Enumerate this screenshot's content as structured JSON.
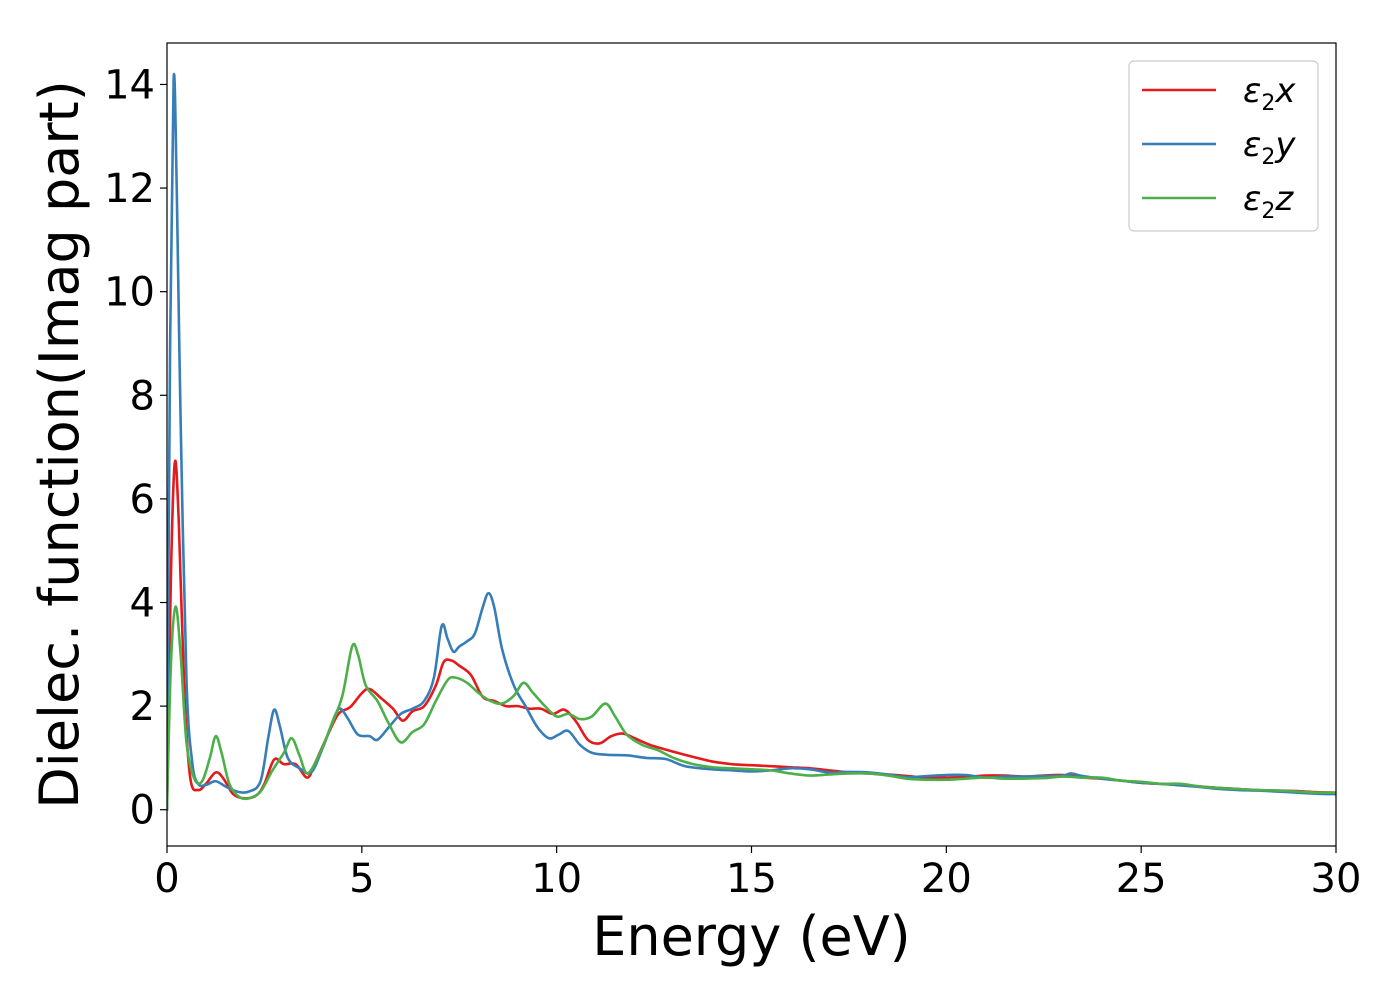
{
  "chart_data": {
    "type": "line",
    "title": "",
    "xlabel": "Energy (eV)",
    "ylabel": "Dielec. function(Imag part)",
    "xlim": [
      0,
      30
    ],
    "ylim": [
      -0.7,
      14.8
    ],
    "xticks": [
      0,
      5,
      10,
      15,
      20,
      25,
      30
    ],
    "yticks": [
      0,
      2,
      4,
      6,
      8,
      10,
      12,
      14
    ],
    "grid": false,
    "legend_position": "top-right",
    "series": [
      {
        "name": "ε2x",
        "legend": {
          "symbol": "ε",
          "sub": "2",
          "comp": "x"
        },
        "color": "#e41a1c",
        "points": [
          [
            0,
            0
          ],
          [
            0.1,
            4.5
          ],
          [
            0.2,
            6.7
          ],
          [
            0.3,
            5.6
          ],
          [
            0.45,
            2.2
          ],
          [
            0.6,
            0.6
          ],
          [
            0.8,
            0.38
          ],
          [
            1.0,
            0.5
          ],
          [
            1.25,
            0.72
          ],
          [
            1.45,
            0.6
          ],
          [
            1.7,
            0.3
          ],
          [
            2.0,
            0.22
          ],
          [
            2.3,
            0.28
          ],
          [
            2.5,
            0.5
          ],
          [
            2.75,
            0.97
          ],
          [
            3.0,
            0.88
          ],
          [
            3.3,
            0.88
          ],
          [
            3.6,
            0.62
          ],
          [
            3.8,
            0.9
          ],
          [
            4.1,
            1.4
          ],
          [
            4.4,
            1.85
          ],
          [
            4.7,
            1.98
          ],
          [
            5.0,
            2.25
          ],
          [
            5.2,
            2.33
          ],
          [
            5.5,
            2.15
          ],
          [
            5.8,
            1.95
          ],
          [
            6.05,
            1.72
          ],
          [
            6.3,
            1.9
          ],
          [
            6.6,
            2.0
          ],
          [
            6.9,
            2.4
          ],
          [
            7.1,
            2.85
          ],
          [
            7.3,
            2.88
          ],
          [
            7.5,
            2.78
          ],
          [
            7.8,
            2.6
          ],
          [
            8.1,
            2.18
          ],
          [
            8.4,
            2.1
          ],
          [
            8.7,
            2.0
          ],
          [
            9.0,
            2.0
          ],
          [
            9.3,
            1.95
          ],
          [
            9.6,
            1.95
          ],
          [
            9.9,
            1.85
          ],
          [
            10.2,
            1.93
          ],
          [
            10.5,
            1.7
          ],
          [
            10.8,
            1.35
          ],
          [
            11.1,
            1.28
          ],
          [
            11.4,
            1.42
          ],
          [
            11.7,
            1.47
          ],
          [
            12.0,
            1.38
          ],
          [
            12.4,
            1.25
          ],
          [
            13.0,
            1.12
          ],
          [
            13.5,
            1.02
          ],
          [
            14.0,
            0.93
          ],
          [
            14.5,
            0.88
          ],
          [
            15.0,
            0.86
          ],
          [
            15.5,
            0.84
          ],
          [
            16.0,
            0.82
          ],
          [
            16.5,
            0.8
          ],
          [
            17.0,
            0.76
          ],
          [
            17.5,
            0.72
          ],
          [
            18.0,
            0.7
          ],
          [
            18.5,
            0.68
          ],
          [
            19.0,
            0.65
          ],
          [
            19.5,
            0.62
          ],
          [
            20.0,
            0.62
          ],
          [
            20.5,
            0.63
          ],
          [
            21.0,
            0.66
          ],
          [
            21.5,
            0.66
          ],
          [
            22.0,
            0.64
          ],
          [
            22.5,
            0.66
          ],
          [
            23.0,
            0.67
          ],
          [
            23.5,
            0.62
          ],
          [
            24.0,
            0.6
          ],
          [
            24.5,
            0.56
          ],
          [
            25.0,
            0.52
          ],
          [
            25.5,
            0.5
          ],
          [
            26.0,
            0.48
          ],
          [
            26.5,
            0.45
          ],
          [
            27.0,
            0.42
          ],
          [
            27.5,
            0.4
          ],
          [
            28.0,
            0.38
          ],
          [
            28.5,
            0.37
          ],
          [
            29.0,
            0.36
          ],
          [
            29.5,
            0.34
          ],
          [
            30.0,
            0.33
          ]
        ]
      },
      {
        "name": "ε2y",
        "legend": {
          "symbol": "ε",
          "sub": "2",
          "comp": "y"
        },
        "color": "#377eb8",
        "points": [
          [
            0,
            0
          ],
          [
            0.08,
            9.0
          ],
          [
            0.17,
            14.1
          ],
          [
            0.25,
            12.0
          ],
          [
            0.35,
            7.5
          ],
          [
            0.5,
            2.5
          ],
          [
            0.65,
            0.9
          ],
          [
            0.8,
            0.5
          ],
          [
            1.0,
            0.48
          ],
          [
            1.25,
            0.55
          ],
          [
            1.5,
            0.45
          ],
          [
            1.8,
            0.35
          ],
          [
            2.1,
            0.35
          ],
          [
            2.4,
            0.55
          ],
          [
            2.6,
            1.4
          ],
          [
            2.75,
            1.93
          ],
          [
            2.9,
            1.6
          ],
          [
            3.1,
            1.0
          ],
          [
            3.4,
            0.8
          ],
          [
            3.7,
            0.72
          ],
          [
            4.0,
            1.2
          ],
          [
            4.3,
            1.8
          ],
          [
            4.45,
            1.95
          ],
          [
            4.65,
            1.75
          ],
          [
            4.9,
            1.45
          ],
          [
            5.2,
            1.42
          ],
          [
            5.4,
            1.35
          ],
          [
            5.7,
            1.6
          ],
          [
            6.0,
            1.85
          ],
          [
            6.3,
            1.95
          ],
          [
            6.6,
            2.1
          ],
          [
            6.85,
            2.55
          ],
          [
            7.05,
            3.55
          ],
          [
            7.2,
            3.3
          ],
          [
            7.35,
            3.05
          ],
          [
            7.5,
            3.15
          ],
          [
            7.7,
            3.25
          ],
          [
            7.9,
            3.4
          ],
          [
            8.1,
            3.9
          ],
          [
            8.25,
            4.18
          ],
          [
            8.4,
            3.9
          ],
          [
            8.6,
            3.1
          ],
          [
            8.9,
            2.4
          ],
          [
            9.2,
            2.0
          ],
          [
            9.5,
            1.6
          ],
          [
            9.8,
            1.38
          ],
          [
            10.05,
            1.45
          ],
          [
            10.3,
            1.52
          ],
          [
            10.6,
            1.25
          ],
          [
            10.9,
            1.1
          ],
          [
            11.3,
            1.06
          ],
          [
            11.8,
            1.05
          ],
          [
            12.3,
            1.0
          ],
          [
            12.8,
            0.98
          ],
          [
            13.3,
            0.84
          ],
          [
            14.0,
            0.78
          ],
          [
            14.5,
            0.76
          ],
          [
            15.0,
            0.74
          ],
          [
            15.5,
            0.76
          ],
          [
            16.0,
            0.8
          ],
          [
            16.5,
            0.78
          ],
          [
            17.0,
            0.72
          ],
          [
            17.5,
            0.73
          ],
          [
            18.0,
            0.72
          ],
          [
            18.5,
            0.68
          ],
          [
            19.0,
            0.63
          ],
          [
            19.5,
            0.65
          ],
          [
            20.0,
            0.67
          ],
          [
            20.5,
            0.67
          ],
          [
            21.0,
            0.62
          ],
          [
            21.5,
            0.64
          ],
          [
            22.0,
            0.64
          ],
          [
            22.5,
            0.65
          ],
          [
            23.0,
            0.66
          ],
          [
            23.2,
            0.7
          ],
          [
            23.5,
            0.65
          ],
          [
            24.0,
            0.6
          ],
          [
            24.5,
            0.56
          ],
          [
            25.0,
            0.52
          ],
          [
            25.5,
            0.5
          ],
          [
            26.0,
            0.47
          ],
          [
            26.5,
            0.44
          ],
          [
            27.0,
            0.4
          ],
          [
            27.5,
            0.38
          ],
          [
            28.0,
            0.37
          ],
          [
            28.5,
            0.35
          ],
          [
            29.0,
            0.33
          ],
          [
            29.5,
            0.31
          ],
          [
            30.0,
            0.3
          ]
        ]
      },
      {
        "name": "ε2z",
        "legend": {
          "symbol": "ε",
          "sub": "2",
          "comp": "z"
        },
        "color": "#4daf4a",
        "points": [
          [
            0,
            0
          ],
          [
            0.1,
            2.8
          ],
          [
            0.22,
            3.92
          ],
          [
            0.35,
            3.0
          ],
          [
            0.5,
            1.3
          ],
          [
            0.7,
            0.6
          ],
          [
            0.9,
            0.55
          ],
          [
            1.1,
            1.0
          ],
          [
            1.25,
            1.42
          ],
          [
            1.4,
            1.1
          ],
          [
            1.6,
            0.5
          ],
          [
            1.85,
            0.25
          ],
          [
            2.1,
            0.22
          ],
          [
            2.4,
            0.35
          ],
          [
            2.7,
            0.75
          ],
          [
            3.0,
            1.1
          ],
          [
            3.2,
            1.38
          ],
          [
            3.4,
            1.05
          ],
          [
            3.6,
            0.7
          ],
          [
            3.9,
            1.05
          ],
          [
            4.2,
            1.6
          ],
          [
            4.5,
            2.2
          ],
          [
            4.75,
            3.15
          ],
          [
            4.9,
            3.0
          ],
          [
            5.1,
            2.4
          ],
          [
            5.4,
            2.1
          ],
          [
            5.7,
            1.65
          ],
          [
            6.0,
            1.3
          ],
          [
            6.3,
            1.5
          ],
          [
            6.6,
            1.65
          ],
          [
            6.9,
            2.1
          ],
          [
            7.2,
            2.5
          ],
          [
            7.4,
            2.55
          ],
          [
            7.7,
            2.45
          ],
          [
            8.0,
            2.25
          ],
          [
            8.3,
            2.1
          ],
          [
            8.6,
            2.05
          ],
          [
            8.9,
            2.2
          ],
          [
            9.15,
            2.45
          ],
          [
            9.4,
            2.25
          ],
          [
            9.7,
            2.0
          ],
          [
            10.0,
            1.8
          ],
          [
            10.3,
            1.85
          ],
          [
            10.6,
            1.75
          ],
          [
            10.9,
            1.8
          ],
          [
            11.25,
            2.05
          ],
          [
            11.5,
            1.8
          ],
          [
            11.8,
            1.45
          ],
          [
            12.2,
            1.25
          ],
          [
            12.6,
            1.15
          ],
          [
            13.0,
            1.0
          ],
          [
            13.5,
            0.88
          ],
          [
            14.0,
            0.82
          ],
          [
            14.5,
            0.8
          ],
          [
            15.0,
            0.78
          ],
          [
            15.5,
            0.76
          ],
          [
            16.0,
            0.7
          ],
          [
            16.5,
            0.66
          ],
          [
            17.0,
            0.68
          ],
          [
            17.5,
            0.7
          ],
          [
            18.0,
            0.7
          ],
          [
            18.5,
            0.66
          ],
          [
            19.0,
            0.6
          ],
          [
            19.5,
            0.58
          ],
          [
            20.0,
            0.58
          ],
          [
            20.5,
            0.6
          ],
          [
            21.0,
            0.62
          ],
          [
            21.5,
            0.6
          ],
          [
            22.0,
            0.6
          ],
          [
            22.5,
            0.61
          ],
          [
            23.0,
            0.64
          ],
          [
            23.5,
            0.62
          ],
          [
            24.0,
            0.62
          ],
          [
            24.5,
            0.56
          ],
          [
            25.0,
            0.54
          ],
          [
            25.5,
            0.5
          ],
          [
            26.0,
            0.5
          ],
          [
            26.5,
            0.45
          ],
          [
            27.0,
            0.42
          ],
          [
            27.5,
            0.4
          ],
          [
            28.0,
            0.38
          ],
          [
            28.5,
            0.37
          ],
          [
            29.0,
            0.35
          ],
          [
            29.5,
            0.33
          ],
          [
            30.0,
            0.33
          ]
        ]
      }
    ]
  }
}
